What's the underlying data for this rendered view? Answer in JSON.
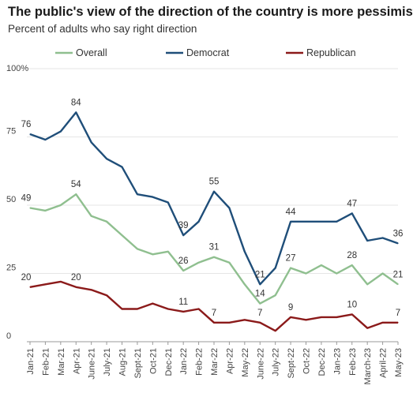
{
  "chart_data": {
    "type": "line",
    "title": "The public's view of the direction of the country is more pessimistic.",
    "subtitle": "Percent of adults who say right direction",
    "x": [
      "Jan-21",
      "Feb-21",
      "Mar-21",
      "Apr-21",
      "June-21",
      "July-21",
      "Aug-21",
      "Sept-21",
      "Oct-21",
      "Dec-21",
      "Jan-22",
      "Feb-22",
      "Mar-22",
      "Apr-22",
      "May-22",
      "June-22",
      "July-22",
      "Sept-22",
      "Oct-22",
      "Dec-22",
      "Jan-23",
      "Feb-23",
      "March-23",
      "April-22",
      "May-23"
    ],
    "ylim": [
      0,
      100
    ],
    "yticks": [
      0,
      25,
      50,
      75,
      100
    ],
    "ytick_labels": [
      "0",
      "25",
      "50",
      "75",
      "100%"
    ],
    "legend_position": "top",
    "series": [
      {
        "name": "Overall",
        "color": "#8fbf8f",
        "values": [
          49,
          48,
          50,
          54,
          46,
          44,
          39,
          34,
          32,
          33,
          26,
          29,
          31,
          29,
          21,
          14,
          17,
          27,
          25,
          28,
          25,
          28,
          21,
          25,
          21
        ],
        "labels": [
          {
            "i": 0,
            "text": "49"
          },
          {
            "i": 3,
            "text": "54"
          },
          {
            "i": 10,
            "text": "26"
          },
          {
            "i": 12,
            "text": "31"
          },
          {
            "i": 15,
            "text": "14"
          },
          {
            "i": 17,
            "text": "27"
          },
          {
            "i": 21,
            "text": "28"
          },
          {
            "i": 24,
            "text": "21"
          }
        ]
      },
      {
        "name": "Democrat",
        "color": "#1f4e79",
        "values": [
          76,
          74,
          77,
          84,
          73,
          67,
          64,
          54,
          53,
          51,
          39,
          44,
          55,
          49,
          33,
          21,
          27,
          44,
          44,
          44,
          44,
          47,
          37,
          38,
          36
        ],
        "labels": [
          {
            "i": 0,
            "text": "76"
          },
          {
            "i": 3,
            "text": "84"
          },
          {
            "i": 10,
            "text": "39"
          },
          {
            "i": 12,
            "text": "55"
          },
          {
            "i": 15,
            "text": "21"
          },
          {
            "i": 17,
            "text": "44"
          },
          {
            "i": 21,
            "text": "47"
          },
          {
            "i": 24,
            "text": "36"
          }
        ]
      },
      {
        "name": "Republican",
        "color": "#8b1a1a",
        "values": [
          20,
          21,
          22,
          20,
          19,
          17,
          12,
          12,
          14,
          12,
          11,
          12,
          7,
          7,
          8,
          7,
          4,
          9,
          8,
          9,
          9,
          10,
          5,
          7,
          7
        ],
        "labels": [
          {
            "i": 0,
            "text": "20"
          },
          {
            "i": 3,
            "text": "20"
          },
          {
            "i": 10,
            "text": "11"
          },
          {
            "i": 12,
            "text": "7"
          },
          {
            "i": 15,
            "text": "7"
          },
          {
            "i": 17,
            "text": "9"
          },
          {
            "i": 21,
            "text": "10"
          },
          {
            "i": 24,
            "text": "7"
          }
        ]
      }
    ]
  }
}
